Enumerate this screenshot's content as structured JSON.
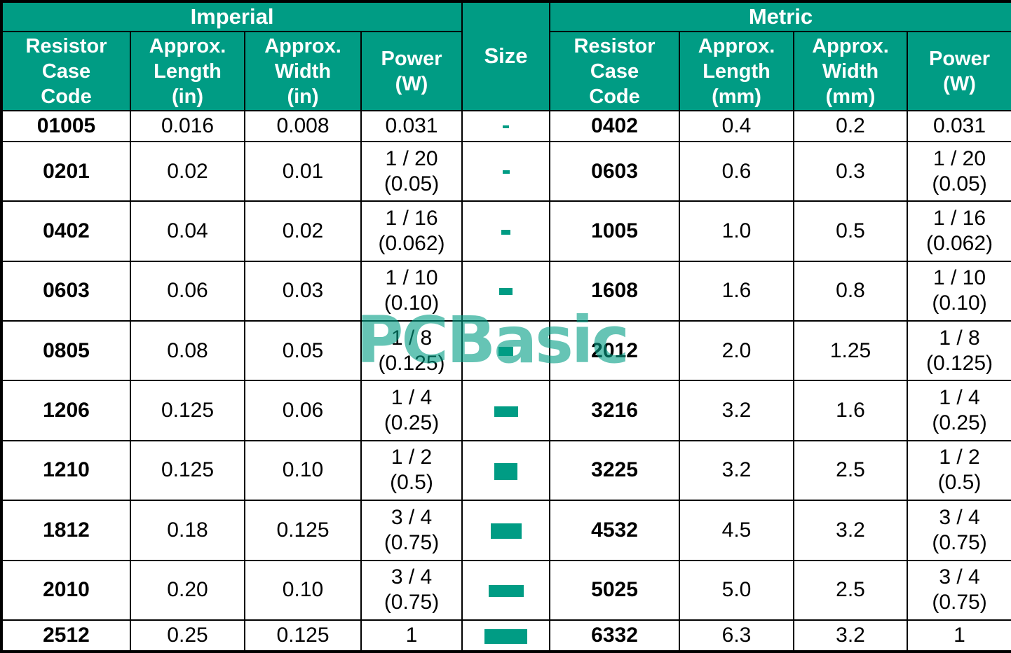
{
  "colors": {
    "header_bg": "#009C84",
    "header_text": "#ffffff",
    "border": "#000000",
    "cell_bg": "#ffffff",
    "cell_text": "#000000",
    "swatch": "#009C84",
    "watermark": "rgba(0,156,132,0.60)"
  },
  "table": {
    "imperial_header": "Imperial",
    "metric_header": "Metric",
    "size_header": "Size",
    "imperial_columns": [
      {
        "label": "Resistor\nCase\nCode"
      },
      {
        "label": "Approx.\nLength\n(in)"
      },
      {
        "label": "Approx.\nWidth\n(in)"
      },
      {
        "label": "Power\n(W)"
      }
    ],
    "metric_columns": [
      {
        "label": "Resistor\nCase\nCode"
      },
      {
        "label": "Approx.\nLength\n(mm)"
      },
      {
        "label": "Approx.\nWidth\n(mm)"
      },
      {
        "label": "Power\n(W)"
      }
    ]
  },
  "rows": [
    {
      "imp_code": "01005",
      "imp_len": "0.016",
      "imp_wid": "0.008",
      "imp_pw1": "0.031",
      "imp_pw2": "",
      "size_w": 9,
      "size_h": 4,
      "met_code": "0402",
      "met_len": "0.4",
      "met_wid": "0.2",
      "met_pw1": "0.031",
      "met_pw2": ""
    },
    {
      "imp_code": "0201",
      "imp_len": "0.02",
      "imp_wid": "0.01",
      "imp_pw1": "1 / 20",
      "imp_pw2": "(0.05)",
      "size_w": 10,
      "size_h": 5,
      "met_code": "0603",
      "met_len": "0.6",
      "met_wid": "0.3",
      "met_pw1": "1 / 20",
      "met_pw2": "(0.05)"
    },
    {
      "imp_code": "0402",
      "imp_len": "0.04",
      "imp_wid": "0.02",
      "imp_pw1": "1 / 16",
      "imp_pw2": "(0.062)",
      "size_w": 13,
      "size_h": 7,
      "met_code": "1005",
      "met_len": "1.0",
      "met_wid": "0.5",
      "met_pw1": "1 / 16",
      "met_pw2": "(0.062)"
    },
    {
      "imp_code": "0603",
      "imp_len": "0.06",
      "imp_wid": "0.03",
      "imp_pw1": "1 / 10",
      "imp_pw2": "(0.10)",
      "size_w": 19,
      "size_h": 10,
      "met_code": "1608",
      "met_len": "1.6",
      "met_wid": "0.8",
      "met_pw1": "1 / 10",
      "met_pw2": "(0.10)"
    },
    {
      "imp_code": "0805",
      "imp_len": "0.08",
      "imp_wid": "0.05",
      "imp_pw1": "1 / 8",
      "imp_pw2": "(0.125)",
      "size_w": 21,
      "size_h": 13,
      "met_code": "2012",
      "met_len": "2.0",
      "met_wid": "1.25",
      "met_pw1": "1 / 8",
      "met_pw2": "(0.125)"
    },
    {
      "imp_code": "1206",
      "imp_len": "0.125",
      "imp_wid": "0.06",
      "imp_pw1": "1 / 4",
      "imp_pw2": "(0.25)",
      "size_w": 34,
      "size_h": 15,
      "met_code": "3216",
      "met_len": "3.2",
      "met_wid": "1.6",
      "met_pw1": "1 / 4",
      "met_pw2": "(0.25)"
    },
    {
      "imp_code": "1210",
      "imp_len": "0.125",
      "imp_wid": "0.10",
      "imp_pw1": "1 / 2",
      "imp_pw2": "(0.5)",
      "size_w": 33,
      "size_h": 24,
      "met_code": "3225",
      "met_len": "3.2",
      "met_wid": "2.5",
      "met_pw1": "1 / 2",
      "met_pw2": "(0.5)"
    },
    {
      "imp_code": "1812",
      "imp_len": "0.18",
      "imp_wid": "0.125",
      "imp_pw1": "3 / 4",
      "imp_pw2": "(0.75)",
      "size_w": 44,
      "size_h": 22,
      "met_code": "4532",
      "met_len": "4.5",
      "met_wid": "3.2",
      "met_pw1": "3 / 4",
      "met_pw2": "(0.75)"
    },
    {
      "imp_code": "2010",
      "imp_len": "0.20",
      "imp_wid": "0.10",
      "imp_pw1": "3 / 4",
      "imp_pw2": "(0.75)",
      "size_w": 50,
      "size_h": 17,
      "met_code": "5025",
      "met_len": "5.0",
      "met_wid": "2.5",
      "met_pw1": "3 / 4",
      "met_pw2": "(0.75)"
    },
    {
      "imp_code": "2512",
      "imp_len": "0.25",
      "imp_wid": "0.125",
      "imp_pw1": "1",
      "imp_pw2": "",
      "size_w": 61,
      "size_h": 21,
      "met_code": "6332",
      "met_len": "6.3",
      "met_wid": "3.2",
      "met_pw1": "1",
      "met_pw2": ""
    }
  ],
  "watermark": {
    "text": "PCBasic"
  }
}
